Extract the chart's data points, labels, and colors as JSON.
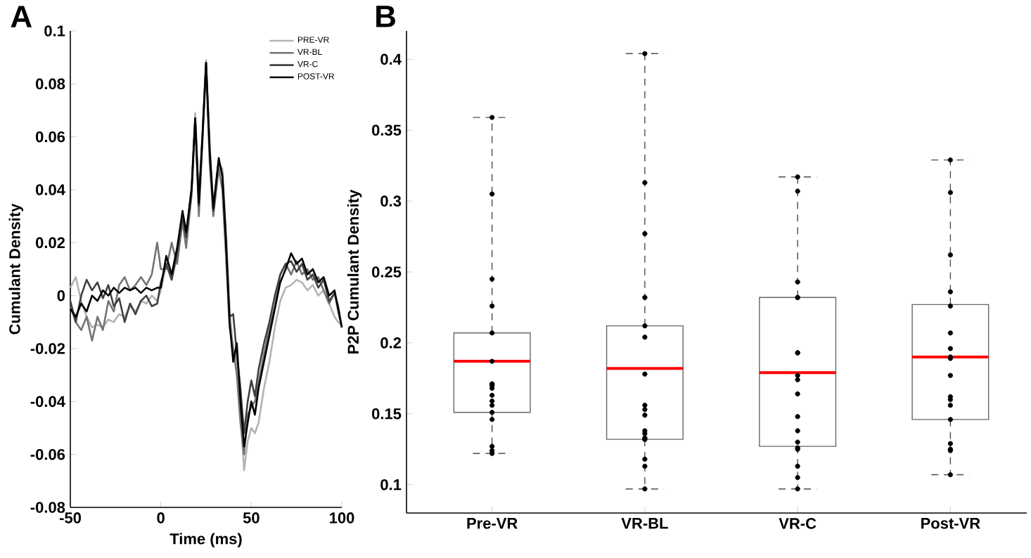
{
  "chart_data": [
    {
      "type": "line",
      "title": "A",
      "xlabel": "Time (ms)",
      "ylabel": "Cumulant Density",
      "xlim": [
        -50,
        100
      ],
      "ylim": [
        -0.08,
        0.1
      ],
      "xticks": [
        -50,
        0,
        50,
        100
      ],
      "yticks": [
        -0.08,
        -0.06,
        -0.04,
        -0.02,
        0,
        0.02,
        0.04,
        0.06,
        0.08,
        0.1
      ],
      "legend": "top right",
      "x": [
        -50,
        -47,
        -44,
        -41,
        -38,
        -35,
        -32,
        -29,
        -26,
        -23,
        -20,
        -17,
        -14,
        -11,
        -8,
        -5,
        -2,
        0,
        3,
        6,
        9,
        12,
        14,
        17,
        19,
        21,
        23,
        25,
        27,
        29,
        32,
        34,
        36,
        38,
        40,
        42,
        44,
        46,
        48,
        50,
        52,
        54,
        57,
        60,
        63,
        66,
        69,
        72,
        75,
        78,
        81,
        84,
        87,
        90,
        93,
        96,
        98,
        100
      ],
      "series": [
        {
          "name": "PRE-VR",
          "color": "#b3b3b3",
          "values": [
            0.003,
            0.007,
            -0.002,
            -0.008,
            -0.012,
            -0.011,
            -0.012,
            -0.009,
            -0.01,
            -0.007,
            -0.008,
            -0.004,
            -0.006,
            -0.002,
            -0.003,
            0.0,
            -0.002,
            0.002,
            0.012,
            0.006,
            0.015,
            0.03,
            0.022,
            0.042,
            0.069,
            0.038,
            0.062,
            0.089,
            0.058,
            0.034,
            0.05,
            0.048,
            0.025,
            -0.005,
            -0.02,
            -0.025,
            -0.045,
            -0.066,
            -0.055,
            -0.05,
            -0.052,
            -0.048,
            -0.035,
            -0.025,
            -0.012,
            -0.002,
            0.003,
            0.004,
            0.006,
            0.005,
            0.002,
            0.004,
            0.0,
            0.002,
            -0.003,
            -0.008,
            -0.01,
            -0.011
          ]
        },
        {
          "name": "VR-BL",
          "color": "#737373",
          "values": [
            -0.004,
            -0.01,
            -0.013,
            -0.008,
            -0.017,
            -0.008,
            -0.013,
            -0.002,
            -0.006,
            0.004,
            0.007,
            0.002,
            0.004,
            0.007,
            0.004,
            0.008,
            0.02,
            0.01,
            0.01,
            0.02,
            0.012,
            0.028,
            0.018,
            0.038,
            0.066,
            0.03,
            0.058,
            0.087,
            0.05,
            0.03,
            0.048,
            0.04,
            0.015,
            -0.012,
            -0.02,
            -0.03,
            -0.048,
            -0.06,
            -0.045,
            -0.042,
            -0.04,
            -0.033,
            -0.022,
            -0.012,
            -0.004,
            0.008,
            0.012,
            0.008,
            0.013,
            0.008,
            0.01,
            0.006,
            0.007,
            0.002,
            -0.003,
            0.001,
            -0.006,
            -0.012
          ]
        },
        {
          "name": "VR-C",
          "color": "#404040",
          "values": [
            -0.002,
            -0.01,
            0.0,
            0.006,
            0.002,
            0.005,
            -0.001,
            0.004,
            -0.004,
            -0.001,
            -0.01,
            -0.003,
            -0.007,
            -0.002,
            0.0,
            -0.004,
            -0.003,
            0.005,
            0.012,
            0.006,
            0.016,
            0.03,
            0.022,
            0.04,
            0.067,
            0.034,
            0.06,
            0.088,
            0.054,
            0.032,
            0.051,
            0.046,
            0.022,
            -0.008,
            -0.007,
            -0.022,
            -0.035,
            -0.052,
            -0.04,
            -0.032,
            -0.038,
            -0.028,
            -0.018,
            -0.01,
            0.0,
            0.008,
            0.012,
            0.013,
            0.009,
            0.012,
            0.006,
            0.008,
            0.003,
            0.006,
            -0.002,
            0.001,
            -0.004,
            -0.012
          ]
        },
        {
          "name": "POST-VR",
          "color": "#000000",
          "values": [
            -0.005,
            -0.008,
            -0.003,
            -0.006,
            0.0,
            -0.002,
            0.002,
            0.0,
            0.003,
            0.001,
            0.003,
            0.002,
            0.003,
            0.001,
            0.003,
            0.002,
            0.003,
            0.003,
            0.015,
            0.008,
            0.018,
            0.032,
            0.024,
            0.04,
            0.067,
            0.035,
            0.06,
            0.088,
            0.055,
            0.033,
            0.052,
            0.045,
            0.02,
            -0.01,
            -0.025,
            -0.018,
            -0.04,
            -0.057,
            -0.048,
            -0.04,
            -0.045,
            -0.035,
            -0.025,
            -0.015,
            -0.005,
            0.005,
            0.01,
            0.016,
            0.012,
            0.014,
            0.008,
            0.01,
            0.005,
            0.007,
            0.0,
            0.002,
            -0.005,
            -0.012
          ]
        }
      ]
    },
    {
      "type": "box",
      "title": "B",
      "ylabel": "P2P Cumulant Density",
      "marker": "circle",
      "categories": [
        "Pre-VR",
        "VR-BL",
        "VR-C",
        "Post-VR"
      ],
      "ylim": [
        0.08,
        0.42
      ],
      "yticks": [
        0.1,
        0.15,
        0.2,
        0.25,
        0.3,
        0.35,
        0.4
      ],
      "boxes": [
        {
          "low": 0.122,
          "q1": 0.151,
          "median": 0.187,
          "q3": 0.207,
          "high": 0.359
        },
        {
          "low": 0.097,
          "q1": 0.132,
          "median": 0.182,
          "q3": 0.212,
          "high": 0.404
        },
        {
          "low": 0.097,
          "q1": 0.127,
          "median": 0.179,
          "q3": 0.232,
          "high": 0.317
        },
        {
          "low": 0.107,
          "q1": 0.146,
          "median": 0.19,
          "q3": 0.227,
          "high": 0.329
        }
      ],
      "series": [
        {
          "type": "scatter",
          "color": "#000000",
          "x": [
            "Pre-VR",
            "Pre-VR",
            "Pre-VR",
            "Pre-VR",
            "Pre-VR",
            "Pre-VR",
            "Pre-VR",
            "Pre-VR",
            "Pre-VR",
            "Pre-VR",
            "Pre-VR",
            "Pre-VR",
            "Pre-VR",
            "Pre-VR",
            "Pre-VR",
            "Pre-VR",
            "Pre-VR",
            "Pre-VR",
            "VR-BL",
            "VR-BL",
            "VR-BL",
            "VR-BL",
            "VR-BL",
            "VR-BL",
            "VR-BL",
            "VR-BL",
            "VR-BL",
            "VR-BL",
            "VR-BL",
            "VR-BL",
            "VR-BL",
            "VR-BL",
            "VR-BL",
            "VR-BL",
            "VR-BL",
            "VR-BL",
            "VR-C",
            "VR-C",
            "VR-C",
            "VR-C",
            "VR-C",
            "VR-C",
            "VR-C",
            "VR-C",
            "VR-C",
            "VR-C",
            "VR-C",
            "VR-C",
            "VR-C",
            "VR-C",
            "VR-C",
            "VR-C",
            "VR-C",
            "VR-C",
            "Post-VR",
            "Post-VR",
            "Post-VR",
            "Post-VR",
            "Post-VR",
            "Post-VR",
            "Post-VR",
            "Post-VR",
            "Post-VR",
            "Post-VR",
            "Post-VR",
            "Post-VR",
            "Post-VR",
            "Post-VR",
            "Post-VR",
            "Post-VR",
            "Post-VR",
            "Post-VR"
          ],
          "values": [
            0.359,
            0.305,
            0.245,
            0.226,
            0.207,
            0.187,
            0.171,
            0.17,
            0.171,
            0.168,
            0.163,
            0.159,
            0.156,
            0.151,
            0.146,
            0.127,
            0.124,
            0.122,
            0.404,
            0.313,
            0.277,
            0.232,
            0.212,
            0.204,
            0.178,
            0.156,
            0.153,
            0.149,
            0.138,
            0.136,
            0.133,
            0.132,
            0.132,
            0.118,
            0.113,
            0.097,
            0.317,
            0.307,
            0.243,
            0.232,
            0.232,
            0.193,
            0.193,
            0.177,
            0.174,
            0.164,
            0.148,
            0.138,
            0.13,
            0.126,
            0.125,
            0.113,
            0.105,
            0.097,
            0.329,
            0.306,
            0.262,
            0.236,
            0.226,
            0.207,
            0.196,
            0.19,
            0.189,
            0.177,
            0.162,
            0.16,
            0.156,
            0.146,
            0.129,
            0.125,
            0.124,
            0.107
          ]
        }
      ]
    }
  ]
}
